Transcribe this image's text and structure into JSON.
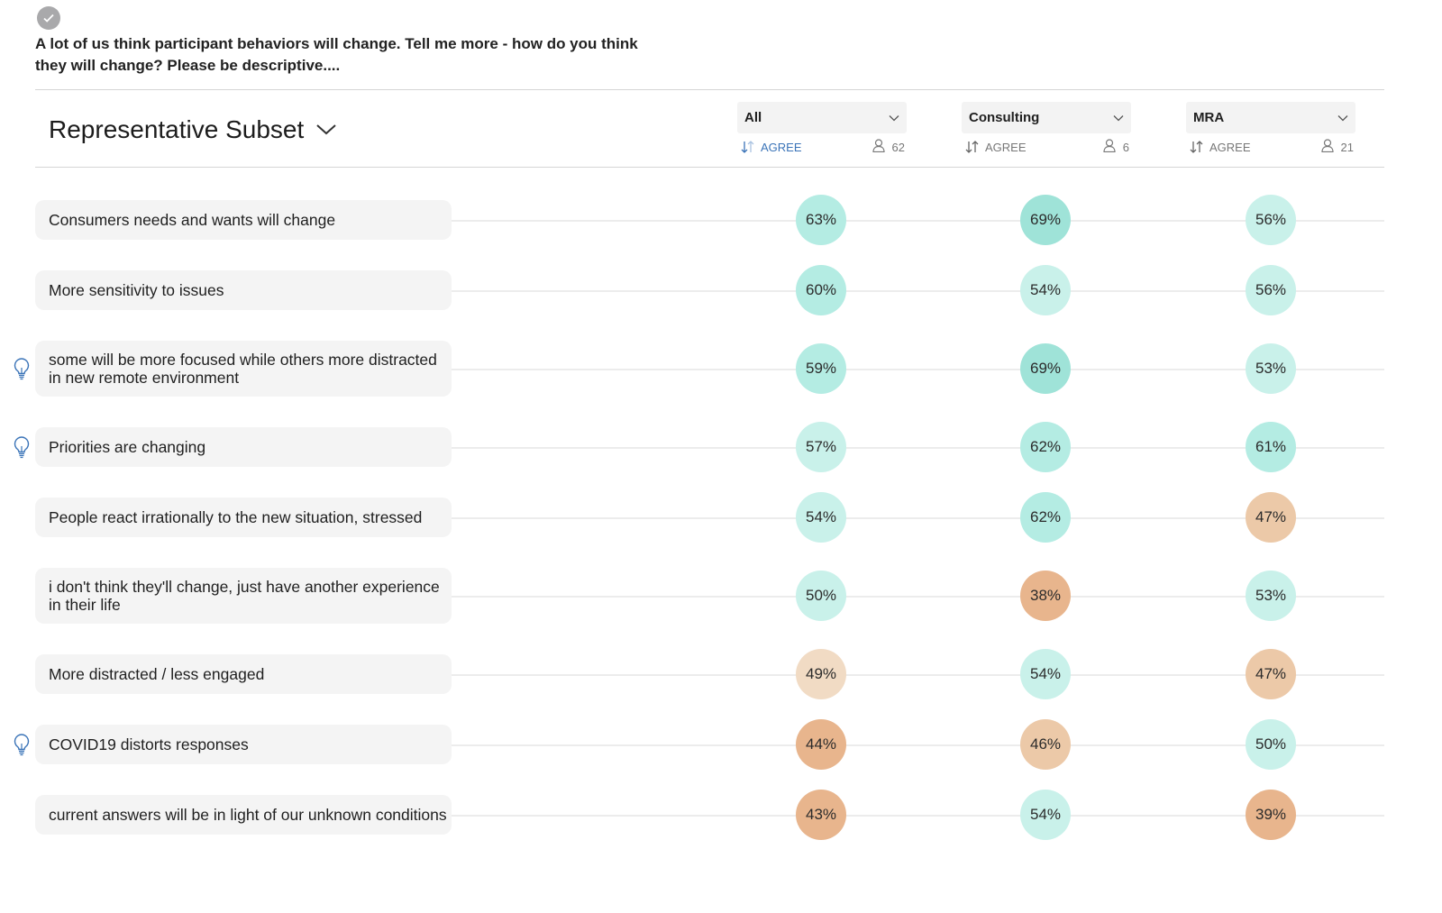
{
  "question": "A lot of us think participant behaviors will change. Tell me more - how do you think they will change? Please be descriptive....",
  "subset": {
    "label": "Representative Subset"
  },
  "columns": [
    {
      "label": "All",
      "sort_label": "AGREE",
      "count": "62",
      "sort_active": true
    },
    {
      "label": "Consulting",
      "sort_label": "AGREE",
      "count": "6",
      "sort_active": false
    },
    {
      "label": "MRA",
      "sort_label": "AGREE",
      "count": "21",
      "sort_active": false
    }
  ],
  "colors": {
    "accent": "#3b74b8",
    "teal_light": "#c9f1ea",
    "teal_mid": "#b4ece3",
    "teal_strong": "#9fe3d8",
    "orange_light": "#f1dbc4",
    "orange_mid": "#ecc9a8",
    "orange_strong": "#e8b58d"
  },
  "rows": [
    {
      "text": "Consumers needs and wants will change",
      "idea": false,
      "values": [
        "63%",
        "69%",
        "56%"
      ]
    },
    {
      "text": "More sensitivity to issues",
      "idea": false,
      "values": [
        "60%",
        "54%",
        "56%"
      ]
    },
    {
      "text": "some will be more focused while others more distracted in new remote environment",
      "idea": true,
      "values": [
        "59%",
        "69%",
        "53%"
      ]
    },
    {
      "text": "Priorities are changing",
      "idea": true,
      "values": [
        "57%",
        "62%",
        "61%"
      ]
    },
    {
      "text": "People react irrationally to the new situation, stressed",
      "idea": false,
      "values": [
        "54%",
        "62%",
        "47%"
      ]
    },
    {
      "text": "i don't think they'll change, just have another experience in their life",
      "idea": false,
      "values": [
        "50%",
        "38%",
        "53%"
      ]
    },
    {
      "text": "More distracted / less engaged",
      "idea": false,
      "values": [
        "49%",
        "54%",
        "47%"
      ]
    },
    {
      "text": "COVID19 distorts responses",
      "idea": true,
      "values": [
        "44%",
        "46%",
        "50%"
      ]
    },
    {
      "text": "current answers will be in light of our unknown conditions",
      "idea": false,
      "values": [
        "43%",
        "54%",
        "39%"
      ]
    }
  ]
}
